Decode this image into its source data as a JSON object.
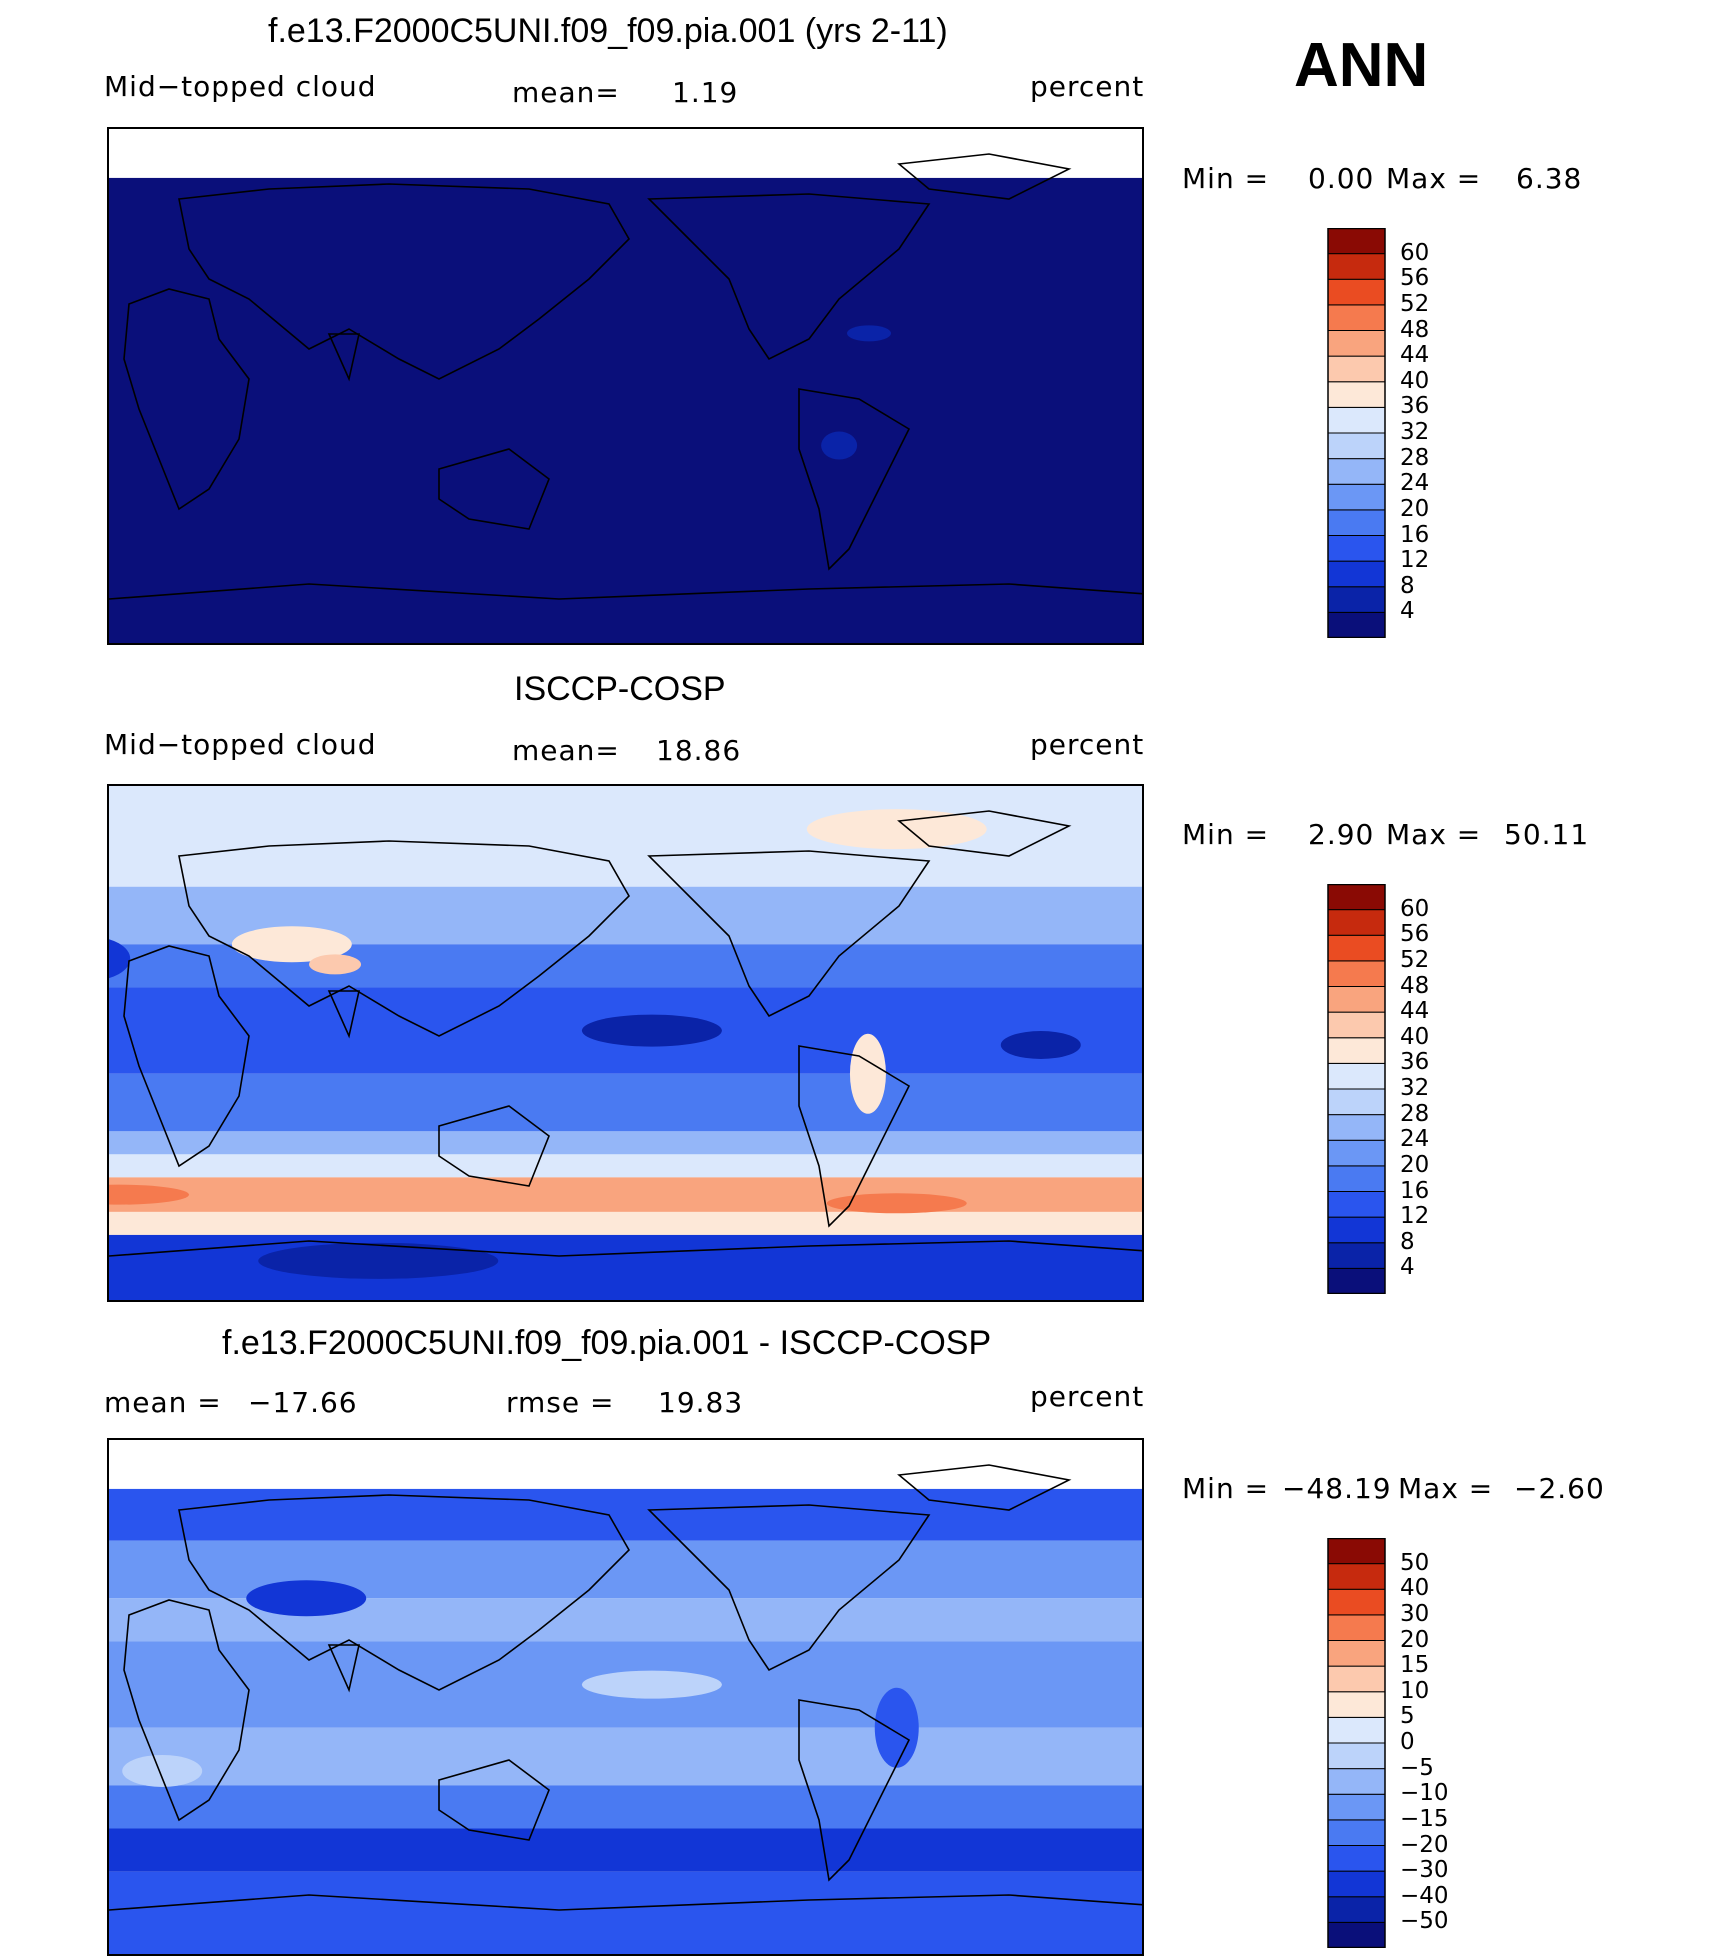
{
  "season": "ANN",
  "chart_data": [
    {
      "type": "heatmap",
      "title": "f.e13.F2000C5UNI.f09_f09.pia.001 (yrs 2-11)",
      "variable": "Mid−topped cloud",
      "mean_label": "mean=",
      "mean_value": "1.19",
      "units": "percent",
      "min_label": "Min  =",
      "min_value": "0.00",
      "max_label": "Max  =",
      "max_value": "6.38",
      "levels": [
        "4",
        "8",
        "12",
        "16",
        "20",
        "24",
        "28",
        "32",
        "36",
        "40",
        "44",
        "48",
        "52",
        "56",
        "60"
      ],
      "colors": [
        "#0a0f7a",
        "#0a23a8",
        "#1236d6",
        "#2a55ee",
        "#4a7af2",
        "#6b97f5",
        "#94b6f8",
        "#bcd3fa",
        "#dbe8fc",
        "#fde8d8",
        "#fcc9ae",
        "#f9a47e",
        "#f57a4e",
        "#ea4c22",
        "#c62a0e",
        "#8a0a04"
      ],
      "field": "uniform_low",
      "missing_north": true
    },
    {
      "type": "heatmap",
      "title": "ISCCP-COSP",
      "variable": "Mid−topped cloud",
      "mean_label": "mean=",
      "mean_value": "18.86",
      "units": "percent",
      "min_label": "Min  =",
      "min_value": "2.90",
      "max_label": "Max  =",
      "max_value": "50.11",
      "levels": [
        "4",
        "8",
        "12",
        "16",
        "20",
        "24",
        "28",
        "32",
        "36",
        "40",
        "44",
        "48",
        "52",
        "56",
        "60"
      ],
      "colors": [
        "#0a0f7a",
        "#0a23a8",
        "#1236d6",
        "#2a55ee",
        "#4a7af2",
        "#6b97f5",
        "#94b6f8",
        "#bcd3fa",
        "#dbe8fc",
        "#fde8d8",
        "#fcc9ae",
        "#f9a47e",
        "#f57a4e",
        "#ea4c22",
        "#c62a0e",
        "#8a0a04"
      ],
      "field": "observed",
      "missing_north": false
    },
    {
      "type": "heatmap",
      "title": "f.e13.F2000C5UNI.f09_f09.pia.001 - ISCCP-COSP",
      "mean_label": "mean =",
      "mean_value": "−17.66",
      "rmse_label": "rmse =",
      "rmse_value": "19.83",
      "units": "percent",
      "min_label": "Min  =",
      "min_value": "−48.19",
      "max_label": "Max  =",
      "max_value": "−2.60",
      "levels": [
        "−50",
        "−40",
        "−30",
        "−20",
        "−15",
        "−10",
        "−5",
        "0",
        "5",
        "10",
        "15",
        "20",
        "30",
        "40",
        "50"
      ],
      "colors": [
        "#0a0f7a",
        "#0a23a8",
        "#1236d6",
        "#2a55ee",
        "#4a7af2",
        "#6b97f5",
        "#94b6f8",
        "#bcd3fa",
        "#dbe8fc",
        "#fde8d8",
        "#fcc9ae",
        "#f9a47e",
        "#f57a4e",
        "#ea4c22",
        "#c62a0e",
        "#8a0a04"
      ],
      "field": "difference",
      "missing_north": true
    }
  ]
}
